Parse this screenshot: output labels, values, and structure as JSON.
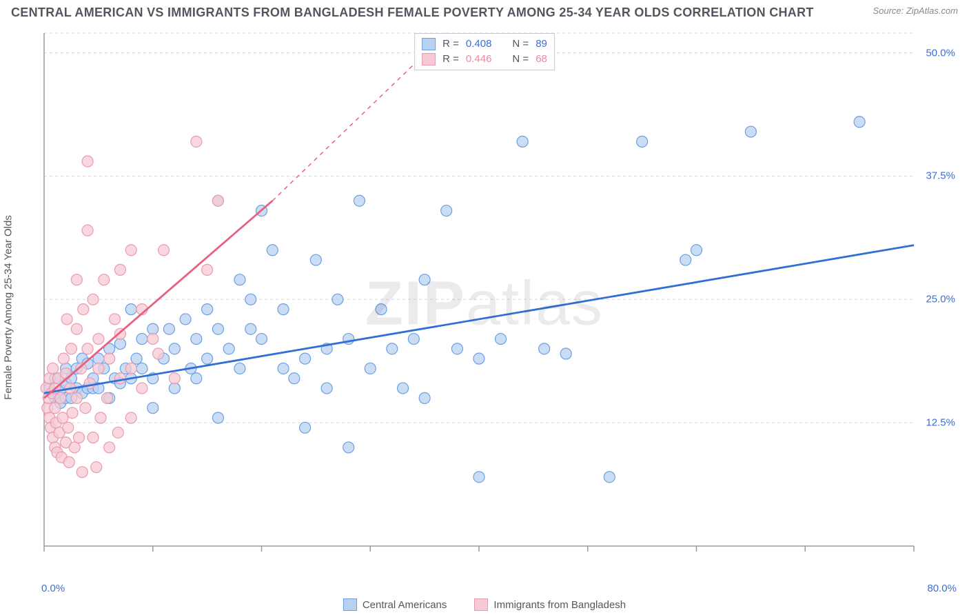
{
  "title": "CENTRAL AMERICAN VS IMMIGRANTS FROM BANGLADESH FEMALE POVERTY AMONG 25-34 YEAR OLDS CORRELATION CHART",
  "source": "Source: ZipAtlas.com",
  "ylabel": "Female Poverty Among 25-34 Year Olds",
  "watermark_bold": "ZIP",
  "watermark_rest": "atlas",
  "chart": {
    "type": "scatter",
    "background_color": "#ffffff",
    "grid_color": "#d8d8dc",
    "grid_dash": "4 4",
    "axis_color": "#999aa0",
    "xlim": [
      0,
      80
    ],
    "ylim": [
      0,
      52
    ],
    "ytick_values": [
      12.5,
      25.0,
      37.5,
      50.0
    ],
    "ytick_labels": [
      "12.5%",
      "25.0%",
      "37.5%",
      "50.0%"
    ],
    "xmin_label": "0.0%",
    "xmax_label": "80.0%",
    "xtick_values": [
      0,
      10,
      20,
      30,
      40,
      50,
      60,
      70,
      80
    ],
    "marker_radius": 8,
    "marker_stroke_width": 1.2,
    "trend_width_solid": 2.8,
    "trend_width_dash": 1.5,
    "series": [
      {
        "key": "central_americans",
        "label": "Central Americans",
        "R": "0.408",
        "N": "89",
        "fill": "#b9d1f1",
        "stroke": "#6b9fe3",
        "trend_color": "#2f6fd6",
        "trend": {
          "x1": 0,
          "y1": 15.5,
          "x2": 80,
          "y2": 30.5
        },
        "trend_dash": null,
        "points": [
          [
            0.5,
            16
          ],
          [
            1,
            15
          ],
          [
            1,
            17
          ],
          [
            1.5,
            14.5
          ],
          [
            1.5,
            15.8
          ],
          [
            2,
            15
          ],
          [
            2,
            16.5
          ],
          [
            2,
            18
          ],
          [
            2.5,
            15
          ],
          [
            2.5,
            17
          ],
          [
            3,
            16
          ],
          [
            3,
            18
          ],
          [
            3.5,
            15.5
          ],
          [
            3.5,
            19
          ],
          [
            4,
            16
          ],
          [
            4,
            18.5
          ],
          [
            4.5,
            17
          ],
          [
            4.5,
            16
          ],
          [
            5,
            16
          ],
          [
            5,
            19
          ],
          [
            5.5,
            18
          ],
          [
            6,
            15
          ],
          [
            6,
            20
          ],
          [
            6.5,
            17
          ],
          [
            7,
            16.5
          ],
          [
            7,
            20.5
          ],
          [
            7.5,
            18
          ],
          [
            8,
            17
          ],
          [
            8,
            24
          ],
          [
            8.5,
            19
          ],
          [
            9,
            18
          ],
          [
            9,
            21
          ],
          [
            10,
            17
          ],
          [
            10,
            22
          ],
          [
            10,
            14
          ],
          [
            11,
            19
          ],
          [
            11.5,
            22
          ],
          [
            12,
            16
          ],
          [
            12,
            20
          ],
          [
            13,
            23
          ],
          [
            13.5,
            18
          ],
          [
            14,
            21
          ],
          [
            14,
            17
          ],
          [
            15,
            24
          ],
          [
            15,
            19
          ],
          [
            16,
            22
          ],
          [
            16,
            35
          ],
          [
            16,
            13
          ],
          [
            17,
            20
          ],
          [
            18,
            27
          ],
          [
            18,
            18
          ],
          [
            19,
            25
          ],
          [
            19,
            22
          ],
          [
            20,
            21
          ],
          [
            20,
            34
          ],
          [
            21,
            30
          ],
          [
            22,
            18
          ],
          [
            22,
            24
          ],
          [
            23,
            17
          ],
          [
            24,
            19
          ],
          [
            24,
            12
          ],
          [
            25,
            29
          ],
          [
            26,
            20
          ],
          [
            26,
            16
          ],
          [
            27,
            25
          ],
          [
            28,
            21
          ],
          [
            28,
            10
          ],
          [
            29,
            35
          ],
          [
            30,
            18
          ],
          [
            31,
            24
          ],
          [
            32,
            20
          ],
          [
            33,
            16
          ],
          [
            34,
            21
          ],
          [
            35,
            27
          ],
          [
            35,
            15
          ],
          [
            37,
            34
          ],
          [
            38,
            20
          ],
          [
            40,
            19
          ],
          [
            40,
            7
          ],
          [
            42,
            21
          ],
          [
            44,
            41
          ],
          [
            46,
            20
          ],
          [
            48,
            19.5
          ],
          [
            52,
            7
          ],
          [
            55,
            41
          ],
          [
            59,
            29
          ],
          [
            60,
            30
          ],
          [
            65,
            42
          ],
          [
            75,
            43
          ]
        ]
      },
      {
        "key": "bangladesh",
        "label": "Immigrants from Bangladesh",
        "R": "0.446",
        "N": "68",
        "fill": "#f6c9d4",
        "stroke": "#ea9ab0",
        "trend_color": "#e7607f",
        "trend": {
          "x1": 0,
          "y1": 15,
          "x2": 21,
          "y2": 35
        },
        "trend_extend": {
          "x1": 21,
          "y1": 35,
          "x2": 37,
          "y2": 52
        },
        "trend_dash": "6 6",
        "points": [
          [
            0.2,
            16
          ],
          [
            0.3,
            14
          ],
          [
            0.4,
            15
          ],
          [
            0.5,
            13
          ],
          [
            0.5,
            17
          ],
          [
            0.6,
            12
          ],
          [
            0.7,
            15.5
          ],
          [
            0.8,
            11
          ],
          [
            0.8,
            18
          ],
          [
            1,
            10
          ],
          [
            1,
            16
          ],
          [
            1,
            14
          ],
          [
            1.1,
            12.5
          ],
          [
            1.2,
            9.5
          ],
          [
            1.3,
            17
          ],
          [
            1.4,
            11.5
          ],
          [
            1.5,
            15
          ],
          [
            1.6,
            9
          ],
          [
            1.7,
            13
          ],
          [
            1.8,
            19
          ],
          [
            2,
            10.5
          ],
          [
            2,
            17.5
          ],
          [
            2.1,
            23
          ],
          [
            2.2,
            12
          ],
          [
            2.3,
            8.5
          ],
          [
            2.4,
            16
          ],
          [
            2.5,
            20
          ],
          [
            2.6,
            13.5
          ],
          [
            2.8,
            10
          ],
          [
            3,
            22
          ],
          [
            3,
            15
          ],
          [
            3,
            27
          ],
          [
            3.2,
            11
          ],
          [
            3.4,
            18
          ],
          [
            3.5,
            7.5
          ],
          [
            3.6,
            24
          ],
          [
            3.8,
            14
          ],
          [
            4,
            32
          ],
          [
            4,
            20
          ],
          [
            4,
            39
          ],
          [
            4.2,
            16.5
          ],
          [
            4.5,
            11
          ],
          [
            4.5,
            25
          ],
          [
            4.8,
            8
          ],
          [
            5,
            21
          ],
          [
            5,
            18
          ],
          [
            5.2,
            13
          ],
          [
            5.5,
            27
          ],
          [
            5.8,
            15
          ],
          [
            6,
            10
          ],
          [
            6,
            19
          ],
          [
            6.5,
            23
          ],
          [
            6.8,
            11.5
          ],
          [
            7,
            17
          ],
          [
            7,
            28
          ],
          [
            7,
            21.5
          ],
          [
            8,
            13
          ],
          [
            8,
            30
          ],
          [
            8,
            18
          ],
          [
            9,
            16
          ],
          [
            9,
            24
          ],
          [
            10,
            21
          ],
          [
            10.5,
            19.5
          ],
          [
            11,
            30
          ],
          [
            12,
            17
          ],
          [
            14,
            41
          ],
          [
            15,
            28
          ],
          [
            16,
            35
          ]
        ]
      }
    ]
  },
  "stat_legend": {
    "rows": [
      {
        "swatch_fill": "#b9d1f1",
        "swatch_stroke": "#6b9fe3",
        "r_label": "R =",
        "r_val": "0.408",
        "n_label": "N =",
        "n_val": "89",
        "val_class": "stat-val-b"
      },
      {
        "swatch_fill": "#f6c9d4",
        "swatch_stroke": "#ea9ab0",
        "r_label": "R =",
        "r_val": "0.446",
        "n_label": "N =",
        "n_val": "68",
        "val_class": "stat-val-p"
      }
    ]
  }
}
